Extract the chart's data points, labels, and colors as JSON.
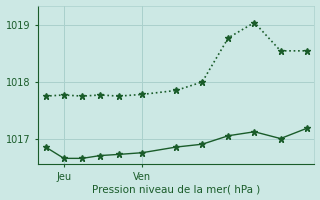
{
  "title": "",
  "xlabel": "Pression niveau de la mer( hPa )",
  "bg_color": "#cce8e4",
  "grid_color": "#aad0cc",
  "line_color": "#1a5c2a",
  "yticks": [
    1017,
    1018,
    1019
  ],
  "ylim": [
    1016.55,
    1019.35
  ],
  "xlim": [
    -0.3,
    10.3
  ],
  "xtick_positions": [
    0.7,
    3.7
  ],
  "xtick_labels": [
    "Jeu",
    "Ven"
  ],
  "vline_positions": [
    0.7,
    3.7
  ],
  "line1_x": [
    0.0,
    0.7,
    1.4,
    2.1,
    2.8,
    3.7,
    5.0,
    6.0,
    7.0,
    8.0,
    9.0,
    10.0
  ],
  "line1_y": [
    1017.75,
    1017.77,
    1017.75,
    1017.77,
    1017.75,
    1017.78,
    1017.85,
    1018.0,
    1018.78,
    1019.05,
    1018.55,
    1018.55
  ],
  "line2_x": [
    0.0,
    0.7,
    1.4,
    2.1,
    2.8,
    3.7,
    5.0,
    6.0,
    7.0,
    8.0,
    9.0,
    10.0
  ],
  "line2_y": [
    1016.85,
    1016.65,
    1016.65,
    1016.7,
    1016.72,
    1016.75,
    1016.85,
    1016.9,
    1017.05,
    1017.12,
    1017.0,
    1017.18
  ],
  "marker": "*",
  "marker_size": 5
}
